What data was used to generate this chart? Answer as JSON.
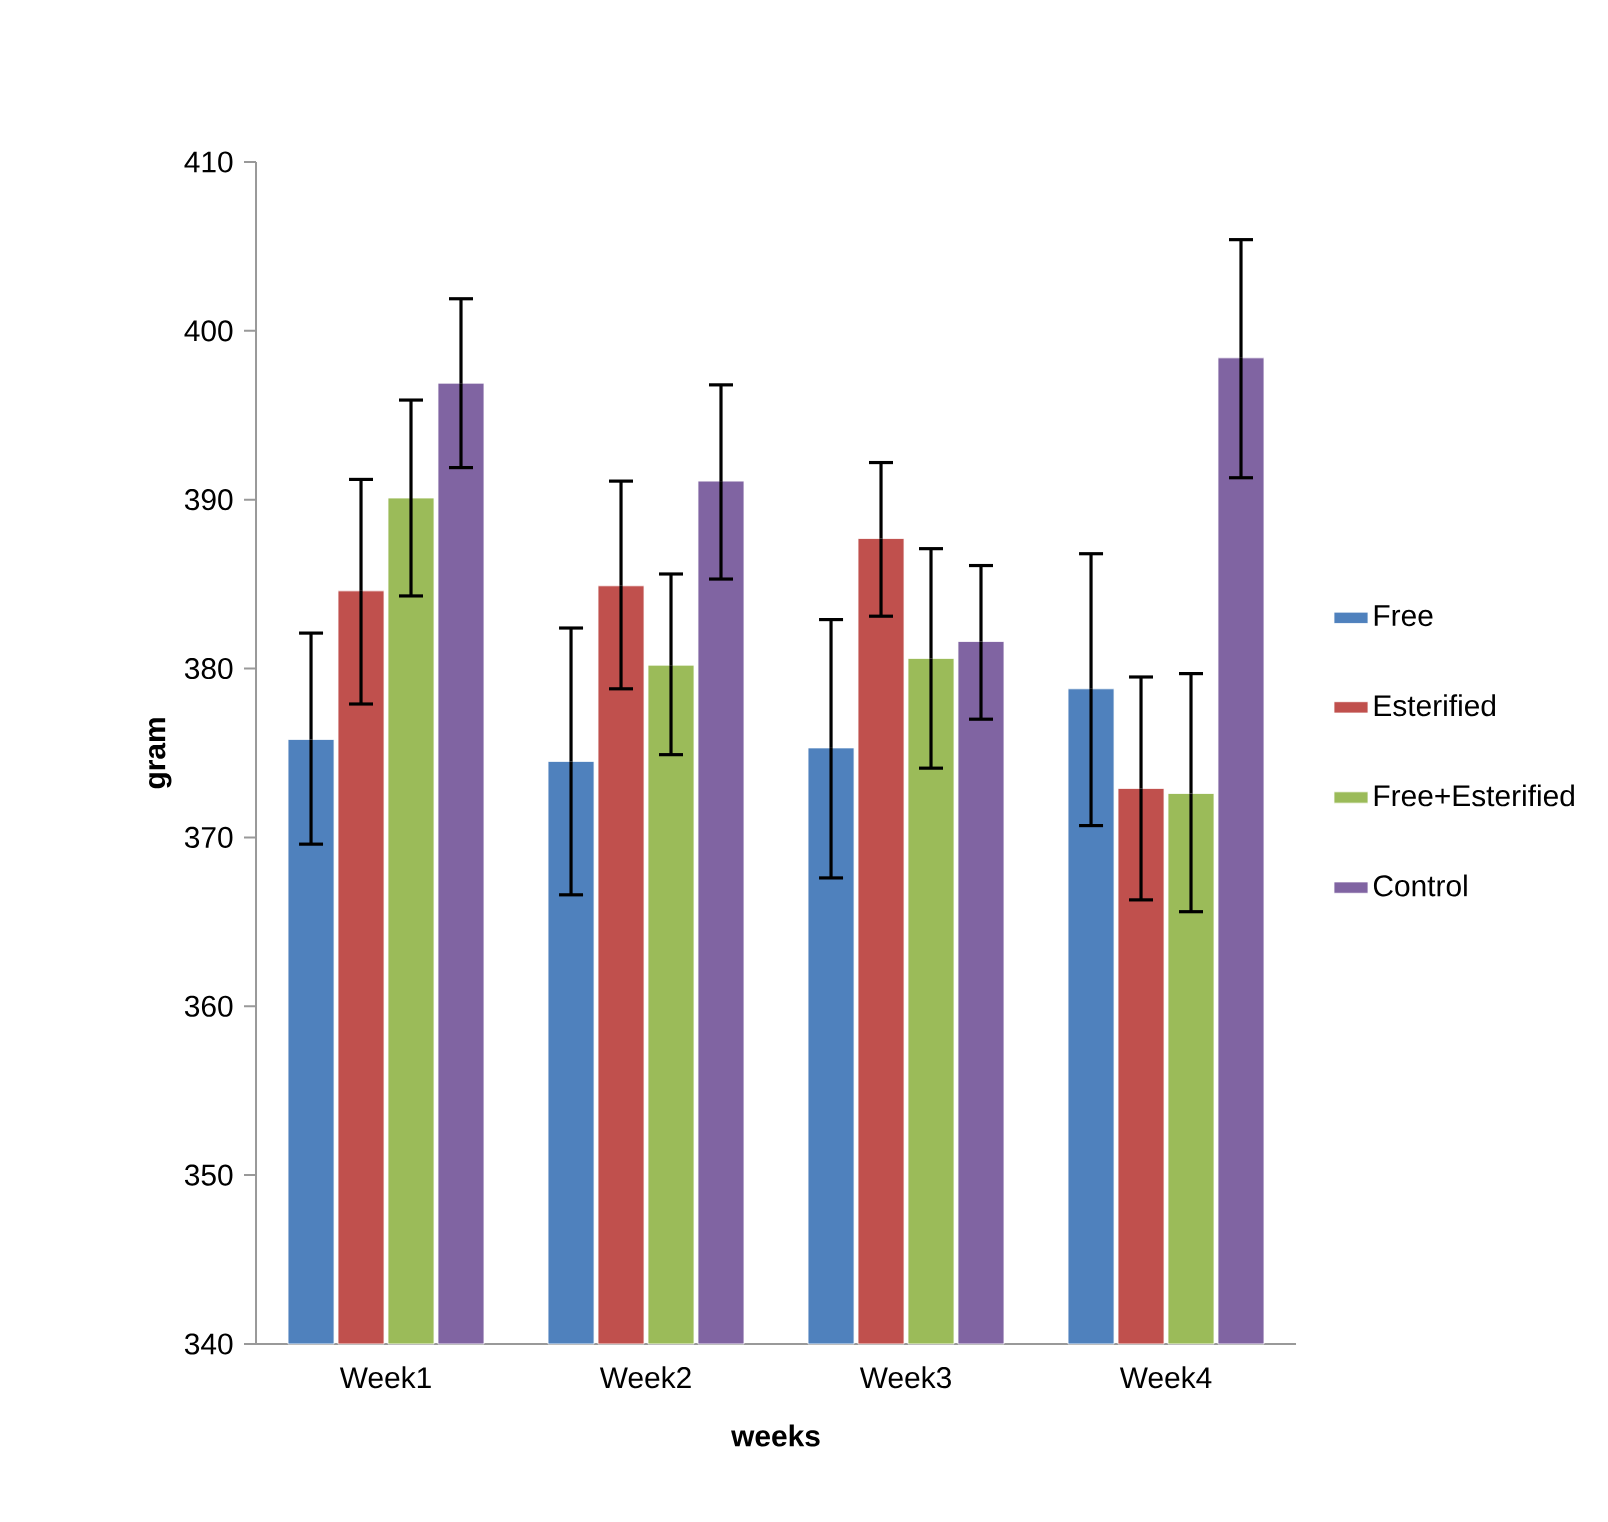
{
  "chart_data": {
    "type": "bar",
    "xlabel": "weeks",
    "ylabel": "gram",
    "categories": [
      "Week1",
      "Week2",
      "Week3",
      "Week4"
    ],
    "series": [
      {
        "name": "Free",
        "color": "#4f81bd",
        "values": [
          375.8,
          374.5,
          375.3,
          378.8
        ],
        "errors": [
          [
            369.6,
            382.1
          ],
          [
            366.6,
            382.4
          ],
          [
            367.6,
            382.9
          ],
          [
            370.7,
            386.8
          ]
        ]
      },
      {
        "name": "Esterified",
        "color": "#c0504d",
        "values": [
          384.6,
          384.9,
          387.7,
          372.9
        ],
        "errors": [
          [
            377.9,
            391.2
          ],
          [
            378.8,
            391.1
          ],
          [
            383.1,
            392.2
          ],
          [
            366.3,
            379.5
          ]
        ]
      },
      {
        "name": "Free+Esterified",
        "color": "#9bbb59",
        "values": [
          390.1,
          380.2,
          380.6,
          372.6
        ],
        "errors": [
          [
            384.3,
            395.9
          ],
          [
            374.9,
            385.6
          ],
          [
            374.1,
            387.1
          ],
          [
            365.6,
            379.7
          ]
        ]
      },
      {
        "name": "Control",
        "color": "#8064a2",
        "values": [
          396.9,
          391.1,
          381.6,
          398.4
        ],
        "errors": [
          [
            391.9,
            401.9
          ],
          [
            385.3,
            396.8
          ],
          [
            377.0,
            386.1
          ],
          [
            391.3,
            405.4
          ]
        ]
      }
    ],
    "ylim": [
      340,
      410
    ],
    "yticks": [
      340,
      350,
      360,
      370,
      380,
      390,
      400,
      410
    ],
    "grid": false,
    "legend": "right"
  }
}
